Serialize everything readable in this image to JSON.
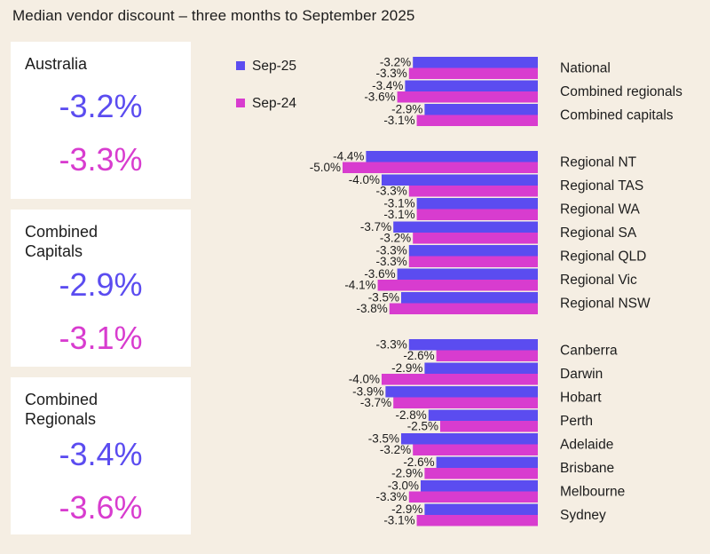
{
  "title": "Median vendor discount – three months to September 2025",
  "cards": [
    {
      "label": "Australia",
      "sep25": "-3.2%",
      "sep24": "-3.3%"
    },
    {
      "label": "Combined\nCapitals",
      "sep25": "-2.9%",
      "sep24": "-3.1%"
    },
    {
      "label": "Combined\nRegionals",
      "sep25": "-3.4%",
      "sep24": "-3.6%"
    }
  ],
  "colors": {
    "sep25": "#5b4cf0",
    "sep24": "#d83ccf",
    "background": "#f5eee3",
    "card": "#ffffff"
  },
  "chart_data": {
    "type": "bar",
    "orientation": "horizontal",
    "title": "Median vendor discount – three months to September 2025",
    "legend_position": "top-left",
    "xlim": [
      -5.0,
      0
    ],
    "categories": [
      "National",
      "Combined regionals",
      "Combined capitals",
      "Regional NT",
      "Regional TAS",
      "Regional WA",
      "Regional SA",
      "Regional QLD",
      "Regional Vic",
      "Regional NSW",
      "Canberra",
      "Darwin",
      "Hobart",
      "Perth",
      "Adelaide",
      "Brisbane",
      "Melbourne",
      "Sydney"
    ],
    "series": [
      {
        "name": "Sep-25",
        "values": [
          -3.2,
          -3.4,
          -2.9,
          -4.4,
          -4.0,
          -3.1,
          -3.7,
          -3.3,
          -3.6,
          -3.5,
          -3.3,
          -2.9,
          -3.9,
          -2.8,
          -3.5,
          -2.6,
          -3.0,
          -2.9
        ]
      },
      {
        "name": "Sep-24",
        "values": [
          -3.3,
          -3.6,
          -3.1,
          -5.0,
          -3.3,
          -3.1,
          -3.2,
          -3.3,
          -4.1,
          -3.8,
          -2.6,
          -4.0,
          -3.7,
          -2.5,
          -3.2,
          -2.9,
          -3.3,
          -3.1
        ]
      }
    ]
  }
}
